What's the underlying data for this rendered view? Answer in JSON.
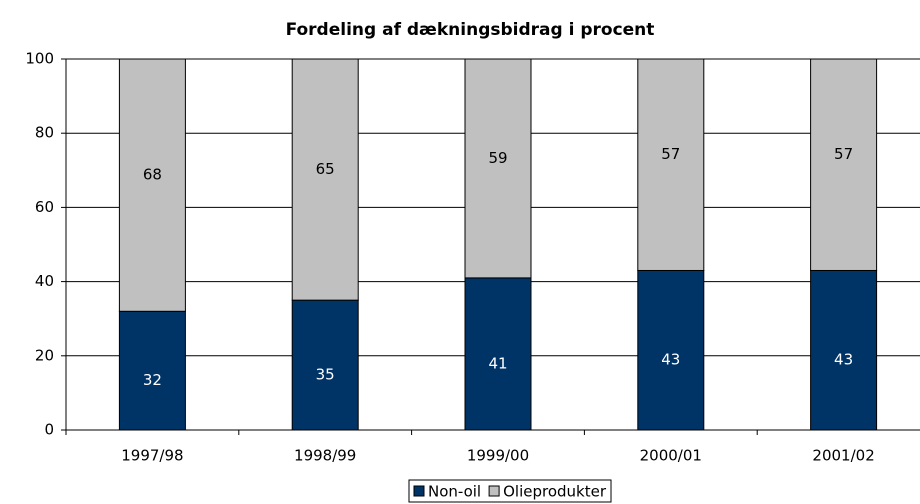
{
  "chart_data": {
    "type": "stacked_bar",
    "title": "Fordeling af dækningsbidrag i procent",
    "categories": [
      "1997/98",
      "1998/99",
      "1999/00",
      "2000/01",
      "2001/02"
    ],
    "series": [
      {
        "name": "Non-oil",
        "color": "#003366",
        "label_color": "#ffffff",
        "values": [
          32,
          35,
          41,
          43,
          43
        ]
      },
      {
        "name": "Olieprodukter",
        "color": "#c0c0c0",
        "label_color": "#000000",
        "values": [
          68,
          65,
          59,
          57,
          57
        ]
      }
    ],
    "ylim": [
      0,
      100
    ],
    "yticks": [
      0,
      20,
      40,
      60,
      80,
      100
    ],
    "grid": true,
    "legend": "bottom"
  }
}
